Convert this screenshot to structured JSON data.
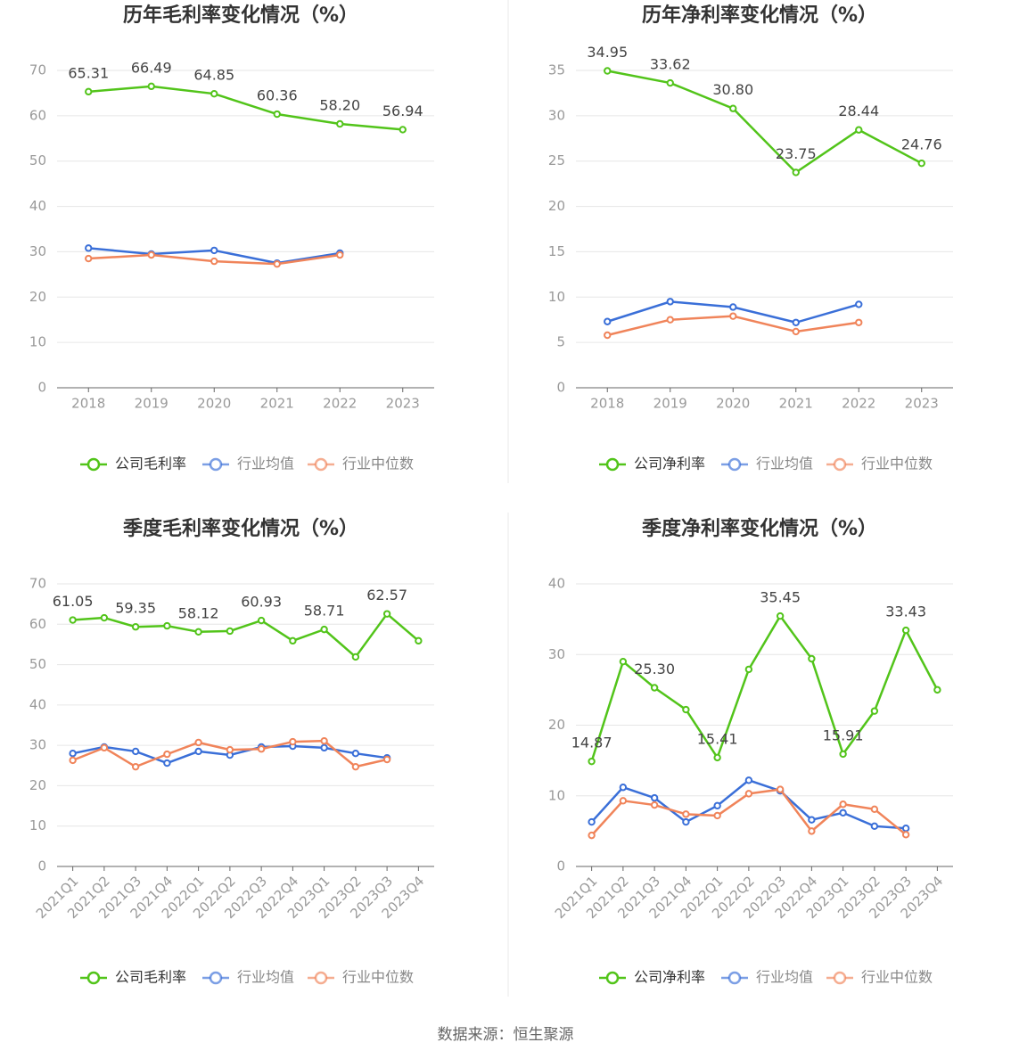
{
  "chart_data": [
    {
      "type": "line",
      "title": "历年毛利率变化情况（%）",
      "categories": [
        "2018",
        "2019",
        "2020",
        "2021",
        "2022",
        "2023"
      ],
      "ylim": [
        0,
        70
      ],
      "yticks": [
        0,
        10,
        20,
        30,
        40,
        50,
        60,
        70
      ],
      "grid": true,
      "series": [
        {
          "name": "公司毛利率",
          "color": "#52c41a",
          "values": [
            65.31,
            66.49,
            64.85,
            60.36,
            58.2,
            56.94
          ],
          "value_labels": [
            "65.31",
            "66.49",
            "64.85",
            "60.36",
            "58.20",
            "56.94"
          ]
        },
        {
          "name": "行业均值",
          "color": "#3a6fd8",
          "values": [
            30.8,
            29.5,
            30.3,
            27.5,
            29.7,
            null
          ]
        },
        {
          "name": "行业中位数",
          "color": "#f0845a",
          "values": [
            28.5,
            29.3,
            27.9,
            27.3,
            29.3,
            null
          ]
        }
      ]
    },
    {
      "type": "line",
      "title": "历年净利率变化情况（%）",
      "categories": [
        "2018",
        "2019",
        "2020",
        "2021",
        "2022",
        "2023"
      ],
      "ylim": [
        0,
        35
      ],
      "yticks": [
        0,
        5,
        10,
        15,
        20,
        25,
        30,
        35
      ],
      "grid": true,
      "series": [
        {
          "name": "公司净利率",
          "color": "#52c41a",
          "values": [
            34.95,
            33.62,
            30.8,
            23.75,
            28.44,
            24.76
          ],
          "value_labels": [
            "34.95",
            "33.62",
            "30.80",
            "23.75",
            "28.44",
            "24.76"
          ]
        },
        {
          "name": "行业均值",
          "color": "#3a6fd8",
          "values": [
            7.3,
            9.5,
            8.9,
            7.2,
            9.2,
            null
          ]
        },
        {
          "name": "行业中位数",
          "color": "#f0845a",
          "values": [
            5.8,
            7.5,
            7.9,
            6.2,
            7.2,
            null
          ]
        }
      ]
    },
    {
      "type": "line",
      "title": "季度毛利率变化情况（%）",
      "categories": [
        "2021Q1",
        "2021Q2",
        "2021Q3",
        "2021Q4",
        "2022Q1",
        "2022Q2",
        "2022Q3",
        "2022Q4",
        "2023Q1",
        "2023Q2",
        "2023Q3",
        "2023Q4"
      ],
      "ylim": [
        0,
        70
      ],
      "yticks": [
        0,
        10,
        20,
        30,
        40,
        50,
        60,
        70
      ],
      "grid": true,
      "series": [
        {
          "name": "公司毛利率",
          "color": "#52c41a",
          "values": [
            61.05,
            61.6,
            59.35,
            59.6,
            58.12,
            58.3,
            60.93,
            55.9,
            58.71,
            51.9,
            62.57,
            55.9
          ],
          "value_labels": [
            "61.05",
            null,
            "59.35",
            null,
            "58.12",
            null,
            "60.93",
            null,
            "58.71",
            null,
            "62.57",
            null
          ]
        },
        {
          "name": "行业均值",
          "color": "#3a6fd8",
          "values": [
            28.0,
            29.6,
            28.5,
            25.6,
            28.5,
            27.6,
            29.6,
            29.8,
            29.4,
            28.0,
            26.9,
            null
          ]
        },
        {
          "name": "行业中位数",
          "color": "#f0845a",
          "values": [
            26.3,
            29.4,
            24.7,
            27.8,
            30.7,
            28.9,
            29.1,
            30.9,
            31.1,
            24.7,
            26.5,
            null
          ]
        }
      ]
    },
    {
      "type": "line",
      "title": "季度净利率变化情况（%）",
      "categories": [
        "2021Q1",
        "2021Q2",
        "2021Q3",
        "2021Q4",
        "2022Q1",
        "2022Q2",
        "2022Q3",
        "2022Q4",
        "2023Q1",
        "2023Q2",
        "2023Q3",
        "2023Q4"
      ],
      "ylim": [
        0,
        40
      ],
      "yticks": [
        0,
        10,
        20,
        30,
        40
      ],
      "grid": true,
      "series": [
        {
          "name": "公司净利率",
          "color": "#52c41a",
          "values": [
            14.87,
            29.0,
            25.3,
            22.2,
            15.41,
            27.9,
            35.45,
            29.4,
            15.91,
            22.0,
            33.43,
            25.0
          ],
          "value_labels": [
            "14.87",
            null,
            "25.30",
            null,
            "15.41",
            null,
            "35.45",
            null,
            "15.91",
            null,
            "33.43",
            null
          ]
        },
        {
          "name": "行业均值",
          "color": "#3a6fd8",
          "values": [
            6.3,
            11.2,
            9.7,
            6.3,
            8.6,
            12.2,
            10.7,
            6.6,
            7.6,
            5.7,
            5.4,
            null
          ]
        },
        {
          "name": "行业中位数",
          "color": "#f0845a",
          "values": [
            4.4,
            9.3,
            8.7,
            7.4,
            7.2,
            10.3,
            10.9,
            5.0,
            8.8,
            8.1,
            4.5,
            null
          ]
        }
      ]
    }
  ],
  "source": "数据来源：恒生聚源"
}
